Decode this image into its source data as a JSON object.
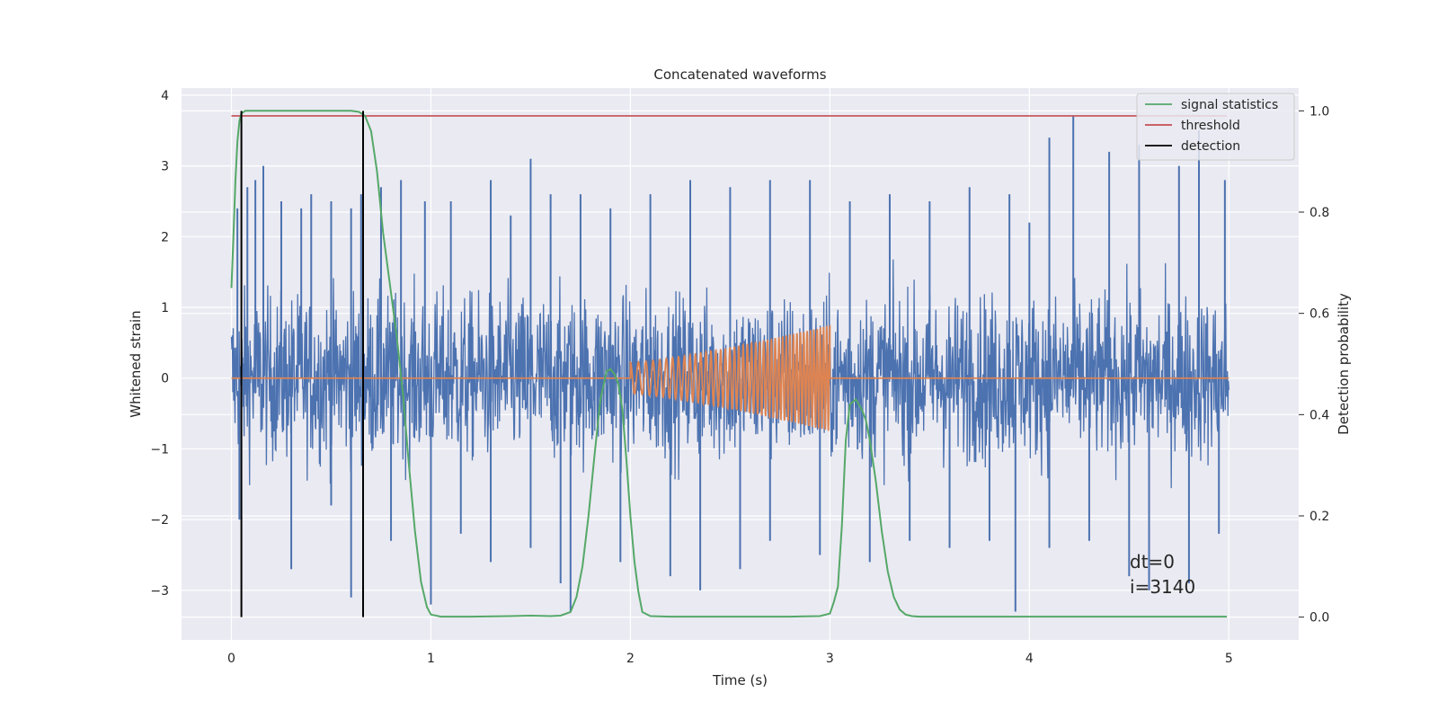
{
  "chart_data": {
    "type": "line",
    "title": "Concatenated waveforms",
    "xlabel": "Time (s)",
    "ylabel": "Whitened strain",
    "ylabel_right": "Detection probability",
    "xlim": [
      -0.25,
      5.35
    ],
    "ylim": [
      -3.7,
      4.1
    ],
    "ylim_right": [
      -0.045,
      1.045
    ],
    "xticks": [
      0,
      1,
      2,
      3,
      4,
      5
    ],
    "yticks": [
      -3,
      -2,
      -1,
      0,
      1,
      2,
      3,
      4
    ],
    "yticks_right": [
      0.0,
      0.2,
      0.4,
      0.6,
      0.8,
      1.0
    ],
    "xtick_labels": [
      "0",
      "1",
      "2",
      "3",
      "4",
      "5"
    ],
    "ytick_labels": [
      "−3",
      "−2",
      "−1",
      "0",
      "1",
      "2",
      "3",
      "4"
    ],
    "ytick_labels_right": [
      "0.0",
      "0.2",
      "0.4",
      "0.6",
      "0.8",
      "1.0"
    ],
    "grid": true,
    "legend_position": "top-right",
    "colors": {
      "background": "#eaeaf2",
      "strain": "#4c72b0",
      "injection": "#dd8452",
      "signal_statistics": "#55a868",
      "threshold": "#c44e52",
      "detection": "#000000"
    },
    "series": [
      {
        "name": "signal statistics",
        "axis": "right",
        "x": [
          0.0,
          0.01,
          0.02,
          0.03,
          0.04,
          0.05,
          0.07,
          0.1,
          0.2,
          0.4,
          0.6,
          0.64,
          0.67,
          0.7,
          0.73,
          0.76,
          0.8,
          0.83,
          0.86,
          0.89,
          0.92,
          0.95,
          0.98,
          1.0,
          1.05,
          1.2,
          1.4,
          1.5,
          1.6,
          1.65,
          1.7,
          1.73,
          1.76,
          1.79,
          1.82,
          1.85,
          1.88,
          1.9,
          1.92,
          1.94,
          1.96,
          1.98,
          2.0,
          2.02,
          2.04,
          2.06,
          2.1,
          2.2,
          2.5,
          2.8,
          2.95,
          3.0,
          3.02,
          3.04,
          3.06,
          3.08,
          3.1,
          3.13,
          3.16,
          3.18,
          3.2,
          3.23,
          3.26,
          3.29,
          3.32,
          3.35,
          3.38,
          3.41,
          3.45,
          3.5,
          3.8,
          4.2,
          4.6,
          4.9,
          4.99
        ],
        "values": [
          0.65,
          0.75,
          0.86,
          0.94,
          0.98,
          0.995,
          1.0,
          1.0,
          1.0,
          1.0,
          1.0,
          0.998,
          0.99,
          0.96,
          0.88,
          0.76,
          0.64,
          0.55,
          0.44,
          0.3,
          0.17,
          0.07,
          0.02,
          0.005,
          0.001,
          0.001,
          0.002,
          0.003,
          0.002,
          0.003,
          0.01,
          0.04,
          0.1,
          0.2,
          0.32,
          0.43,
          0.485,
          0.49,
          0.48,
          0.46,
          0.41,
          0.31,
          0.2,
          0.11,
          0.05,
          0.01,
          0.002,
          0.001,
          0.001,
          0.001,
          0.002,
          0.007,
          0.03,
          0.06,
          0.18,
          0.35,
          0.42,
          0.43,
          0.41,
          0.39,
          0.35,
          0.27,
          0.17,
          0.09,
          0.04,
          0.015,
          0.005,
          0.002,
          0.001,
          0.001,
          0.001,
          0.001,
          0.001,
          0.001,
          0.001
        ]
      },
      {
        "name": "threshold",
        "axis": "right",
        "x": [
          0.0,
          4.99
        ],
        "values": [
          0.99,
          0.99
        ]
      },
      {
        "name": "detection",
        "axis": "right",
        "type": "vlines",
        "x": [
          0.05,
          0.66
        ],
        "ymin": 0.0,
        "ymax": 1.0
      }
    ],
    "strain": {
      "axis": "left",
      "x_range": [
        0.0,
        5.0
      ],
      "typical_amplitude": 0.9,
      "burst_peaks": [
        [
          0.03,
          2.4
        ],
        [
          0.08,
          2.7
        ],
        [
          0.12,
          2.8
        ],
        [
          0.16,
          3.0
        ],
        [
          0.25,
          2.5
        ],
        [
          0.35,
          2.4
        ],
        [
          0.4,
          2.6
        ],
        [
          0.5,
          2.5
        ],
        [
          0.6,
          2.4
        ],
        [
          0.65,
          2.6
        ],
        [
          0.75,
          2.7
        ],
        [
          0.85,
          2.8
        ],
        [
          0.97,
          2.5
        ],
        [
          1.1,
          2.5
        ],
        [
          1.3,
          2.8
        ],
        [
          1.4,
          2.3
        ],
        [
          1.5,
          3.1
        ],
        [
          1.6,
          2.6
        ],
        [
          1.75,
          2.6
        ],
        [
          1.9,
          2.4
        ],
        [
          2.1,
          2.6
        ],
        [
          2.3,
          2.8
        ],
        [
          2.5,
          2.7
        ],
        [
          2.7,
          2.8
        ],
        [
          2.9,
          2.8
        ],
        [
          3.1,
          2.5
        ],
        [
          3.3,
          2.6
        ],
        [
          3.5,
          2.5
        ],
        [
          3.7,
          2.7
        ],
        [
          3.9,
          2.6
        ],
        [
          4.0,
          2.2
        ],
        [
          4.1,
          3.4
        ],
        [
          4.22,
          3.7
        ],
        [
          4.4,
          3.2
        ],
        [
          4.55,
          3.3
        ],
        [
          4.75,
          3.0
        ],
        [
          4.85,
          3.5
        ],
        [
          4.98,
          2.8
        ],
        [
          0.04,
          -2.0
        ],
        [
          0.3,
          -2.7
        ],
        [
          0.5,
          -1.8
        ],
        [
          0.6,
          -3.1
        ],
        [
          0.8,
          -2.3
        ],
        [
          1.0,
          -3.2
        ],
        [
          1.15,
          -2.2
        ],
        [
          1.3,
          -2.6
        ],
        [
          1.5,
          -2.4
        ],
        [
          1.65,
          -2.9
        ],
        [
          1.7,
          -3.3
        ],
        [
          1.95,
          -2.6
        ],
        [
          2.2,
          -2.8
        ],
        [
          2.35,
          -3.0
        ],
        [
          2.55,
          -2.7
        ],
        [
          2.7,
          -2.3
        ],
        [
          2.95,
          -2.5
        ],
        [
          3.2,
          -2.6
        ],
        [
          3.4,
          -2.3
        ],
        [
          3.6,
          -2.4
        ],
        [
          3.8,
          -2.3
        ],
        [
          3.93,
          -3.3
        ],
        [
          4.1,
          -2.4
        ],
        [
          4.3,
          -2.3
        ],
        [
          4.5,
          -2.8
        ],
        [
          4.6,
          -3.0
        ],
        [
          4.8,
          -2.9
        ],
        [
          4.95,
          -2.2
        ]
      ]
    },
    "injection": {
      "axis": "left",
      "x_range": [
        2.0,
        3.0
      ],
      "amplitude_start": 0.22,
      "amplitude_end": 0.75,
      "cycles": 44
    },
    "annotations": [
      "dt=0",
      "i=3140"
    ]
  }
}
